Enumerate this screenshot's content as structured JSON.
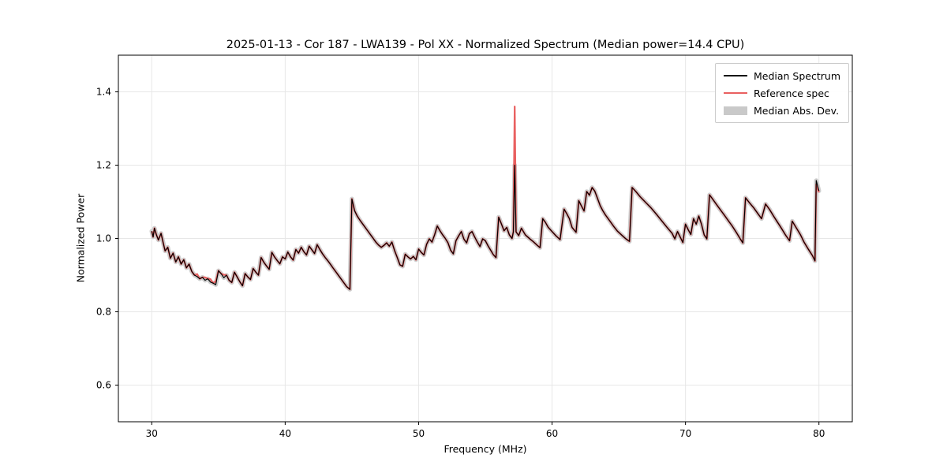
{
  "chart_data": {
    "type": "line",
    "title": "2025-01-13 - Cor 187 - LWA139 - Pol XX - Normalized Spectrum (Median power=14.4 CPU)",
    "xlabel": "Frequency (MHz)",
    "ylabel": "Normalized Power",
    "xlim": [
      27.5,
      82.5
    ],
    "ylim": [
      0.5,
      1.5
    ],
    "xticks": [
      30,
      40,
      50,
      60,
      70,
      80
    ],
    "xtick_labels": [
      "30",
      "40",
      "50",
      "60",
      "70",
      "80"
    ],
    "yticks": [
      0.6,
      0.8,
      1.0,
      1.2,
      1.4
    ],
    "ytick_labels": [
      "0.6",
      "0.8",
      "1.0",
      "1.2",
      "1.4"
    ],
    "grid": true,
    "legend": {
      "position": "upper-right",
      "entries": [
        "Median Spectrum",
        "Reference spec",
        "Median Abs. Dev."
      ]
    },
    "series": [
      {
        "name": "Median Spectrum",
        "color": "#000000",
        "line_width": 1.2,
        "draw_order": 3,
        "points": [
          [
            30.0,
            1.02
          ],
          [
            30.1,
            1.004
          ],
          [
            30.2,
            1.028
          ],
          [
            30.35,
            1.01
          ],
          [
            30.5,
            0.996
          ],
          [
            30.7,
            1.014
          ],
          [
            30.85,
            0.99
          ],
          [
            31.0,
            0.966
          ],
          [
            31.2,
            0.976
          ],
          [
            31.4,
            0.946
          ],
          [
            31.6,
            0.96
          ],
          [
            31.8,
            0.936
          ],
          [
            32.0,
            0.95
          ],
          [
            32.2,
            0.93
          ],
          [
            32.4,
            0.942
          ],
          [
            32.6,
            0.92
          ],
          [
            32.8,
            0.93
          ],
          [
            33.0,
            0.91
          ],
          [
            33.2,
            0.9
          ],
          [
            33.4,
            0.896
          ],
          [
            33.6,
            0.89
          ],
          [
            33.8,
            0.894
          ],
          [
            34.0,
            0.886
          ],
          [
            34.2,
            0.89
          ],
          [
            34.4,
            0.881
          ],
          [
            34.6,
            0.878
          ],
          [
            34.8,
            0.874
          ],
          [
            35.0,
            0.912
          ],
          [
            35.2,
            0.904
          ],
          [
            35.4,
            0.893
          ],
          [
            35.6,
            0.9
          ],
          [
            35.8,
            0.886
          ],
          [
            36.0,
            0.88
          ],
          [
            36.2,
            0.908
          ],
          [
            36.4,
            0.895
          ],
          [
            36.6,
            0.882
          ],
          [
            36.8,
            0.871
          ],
          [
            37.0,
            0.904
          ],
          [
            37.2,
            0.895
          ],
          [
            37.4,
            0.888
          ],
          [
            37.6,
            0.918
          ],
          [
            37.8,
            0.908
          ],
          [
            38.0,
            0.9
          ],
          [
            38.2,
            0.948
          ],
          [
            38.4,
            0.935
          ],
          [
            38.6,
            0.925
          ],
          [
            38.8,
            0.916
          ],
          [
            39.0,
            0.962
          ],
          [
            39.2,
            0.95
          ],
          [
            39.4,
            0.94
          ],
          [
            39.6,
            0.931
          ],
          [
            39.8,
            0.95
          ],
          [
            40.0,
            0.944
          ],
          [
            40.2,
            0.963
          ],
          [
            40.4,
            0.95
          ],
          [
            40.6,
            0.941
          ],
          [
            40.8,
            0.97
          ],
          [
            41.0,
            0.96
          ],
          [
            41.2,
            0.976
          ],
          [
            41.4,
            0.964
          ],
          [
            41.6,
            0.955
          ],
          [
            41.8,
            0.979
          ],
          [
            42.0,
            0.969
          ],
          [
            42.2,
            0.959
          ],
          [
            42.4,
            0.983
          ],
          [
            42.6,
            0.97
          ],
          [
            42.8,
            0.958
          ],
          [
            43.0,
            0.948
          ],
          [
            43.2,
            0.939
          ],
          [
            43.4,
            0.929
          ],
          [
            43.6,
            0.919
          ],
          [
            43.8,
            0.909
          ],
          [
            44.0,
            0.899
          ],
          [
            44.2,
            0.889
          ],
          [
            44.4,
            0.879
          ],
          [
            44.6,
            0.869
          ],
          [
            44.85,
            0.861
          ],
          [
            45.0,
            1.108
          ],
          [
            45.2,
            1.076
          ],
          [
            45.4,
            1.061
          ],
          [
            45.6,
            1.05
          ],
          [
            45.8,
            1.04
          ],
          [
            46.0,
            1.03
          ],
          [
            46.2,
            1.02
          ],
          [
            46.4,
            1.01
          ],
          [
            46.6,
            1.0
          ],
          [
            46.8,
            0.99
          ],
          [
            47.0,
            0.982
          ],
          [
            47.2,
            0.976
          ],
          [
            47.4,
            0.981
          ],
          [
            47.6,
            0.988
          ],
          [
            47.8,
            0.979
          ],
          [
            48.0,
            0.99
          ],
          [
            48.2,
            0.967
          ],
          [
            48.4,
            0.948
          ],
          [
            48.6,
            0.928
          ],
          [
            48.8,
            0.924
          ],
          [
            49.0,
            0.957
          ],
          [
            49.2,
            0.95
          ],
          [
            49.4,
            0.944
          ],
          [
            49.6,
            0.951
          ],
          [
            49.8,
            0.942
          ],
          [
            50.0,
            0.971
          ],
          [
            50.2,
            0.962
          ],
          [
            50.4,
            0.955
          ],
          [
            50.6,
            0.984
          ],
          [
            50.8,
            0.999
          ],
          [
            51.0,
            0.99
          ],
          [
            51.2,
            1.01
          ],
          [
            51.4,
            1.034
          ],
          [
            51.6,
            1.021
          ],
          [
            51.8,
            1.01
          ],
          [
            52.0,
            1.0
          ],
          [
            52.2,
            0.988
          ],
          [
            52.4,
            0.968
          ],
          [
            52.6,
            0.958
          ],
          [
            52.8,
            0.994
          ],
          [
            53.0,
            1.007
          ],
          [
            53.2,
            1.019
          ],
          [
            53.4,
            0.998
          ],
          [
            53.6,
            0.988
          ],
          [
            53.8,
            1.013
          ],
          [
            54.0,
            1.019
          ],
          [
            54.2,
            1.004
          ],
          [
            54.4,
            0.99
          ],
          [
            54.6,
            0.978
          ],
          [
            54.8,
            0.999
          ],
          [
            55.0,
            0.994
          ],
          [
            55.2,
            0.98
          ],
          [
            55.4,
            0.968
          ],
          [
            55.6,
            0.956
          ],
          [
            55.8,
            0.948
          ],
          [
            56.0,
            1.058
          ],
          [
            56.2,
            1.04
          ],
          [
            56.4,
            1.021
          ],
          [
            56.6,
            1.03
          ],
          [
            56.8,
            1.01
          ],
          [
            57.0,
            1.0
          ],
          [
            57.1,
            1.018
          ],
          [
            57.2,
            1.2
          ],
          [
            57.3,
            1.018
          ],
          [
            57.5,
            1.008
          ],
          [
            57.7,
            1.028
          ],
          [
            58.0,
            1.01
          ],
          [
            58.3,
            1.0
          ],
          [
            58.6,
            0.991
          ],
          [
            58.9,
            0.981
          ],
          [
            59.1,
            0.975
          ],
          [
            59.3,
            1.054
          ],
          [
            59.5,
            1.044
          ],
          [
            59.7,
            1.031
          ],
          [
            60.0,
            1.019
          ],
          [
            60.3,
            1.007
          ],
          [
            60.6,
            0.997
          ],
          [
            60.9,
            1.08
          ],
          [
            61.1,
            1.068
          ],
          [
            61.3,
            1.054
          ],
          [
            61.5,
            1.03
          ],
          [
            61.8,
            1.017
          ],
          [
            62.0,
            1.103
          ],
          [
            62.2,
            1.089
          ],
          [
            62.4,
            1.075
          ],
          [
            62.6,
            1.128
          ],
          [
            62.8,
            1.118
          ],
          [
            63.0,
            1.139
          ],
          [
            63.2,
            1.129
          ],
          [
            63.4,
            1.11
          ],
          [
            63.6,
            1.09
          ],
          [
            63.8,
            1.076
          ],
          [
            64.0,
            1.064
          ],
          [
            64.3,
            1.049
          ],
          [
            64.6,
            1.034
          ],
          [
            64.9,
            1.02
          ],
          [
            65.2,
            1.01
          ],
          [
            65.5,
            1.0
          ],
          [
            65.8,
            0.992
          ],
          [
            66.0,
            1.139
          ],
          [
            66.3,
            1.127
          ],
          [
            66.6,
            1.114
          ],
          [
            67.0,
            1.099
          ],
          [
            67.4,
            1.084
          ],
          [
            67.8,
            1.067
          ],
          [
            68.2,
            1.049
          ],
          [
            68.6,
            1.031
          ],
          [
            69.0,
            1.014
          ],
          [
            69.2,
            0.999
          ],
          [
            69.4,
            1.019
          ],
          [
            69.6,
            1.004
          ],
          [
            69.8,
            0.989
          ],
          [
            70.0,
            1.039
          ],
          [
            70.2,
            1.024
          ],
          [
            70.4,
            1.011
          ],
          [
            70.6,
            1.054
          ],
          [
            70.8,
            1.039
          ],
          [
            71.0,
            1.061
          ],
          [
            71.2,
            1.039
          ],
          [
            71.4,
            1.01
          ],
          [
            71.6,
            0.999
          ],
          [
            71.8,
            1.119
          ],
          [
            72.0,
            1.109
          ],
          [
            72.3,
            1.094
          ],
          [
            72.6,
            1.079
          ],
          [
            72.9,
            1.064
          ],
          [
            73.2,
            1.049
          ],
          [
            73.5,
            1.034
          ],
          [
            73.8,
            1.017
          ],
          [
            74.1,
            0.999
          ],
          [
            74.3,
            0.988
          ],
          [
            74.5,
            1.111
          ],
          [
            74.8,
            1.097
          ],
          [
            75.1,
            1.084
          ],
          [
            75.4,
            1.069
          ],
          [
            75.7,
            1.054
          ],
          [
            76.0,
            1.094
          ],
          [
            76.3,
            1.079
          ],
          [
            76.6,
            1.061
          ],
          [
            76.9,
            1.044
          ],
          [
            77.2,
            1.027
          ],
          [
            77.5,
            1.009
          ],
          [
            77.8,
            0.994
          ],
          [
            78.0,
            1.047
          ],
          [
            78.3,
            1.029
          ],
          [
            78.6,
            1.011
          ],
          [
            78.9,
            0.989
          ],
          [
            79.2,
            0.971
          ],
          [
            79.5,
            0.954
          ],
          [
            79.7,
            0.939
          ],
          [
            79.8,
            1.158
          ],
          [
            80.0,
            1.13
          ]
        ]
      },
      {
        "name": "Reference spec",
        "color": "#e96060",
        "line_width": 2.2,
        "draw_order": 2,
        "base_series": 0,
        "overrides": [
          [
            33.4,
            0.903
          ],
          [
            34.0,
            0.894
          ],
          [
            34.4,
            0.889
          ],
          [
            34.8,
            0.883
          ],
          [
            35.4,
            0.901
          ],
          [
            57.2,
            1.36
          ],
          [
            79.8,
            1.148
          ],
          [
            80.0,
            1.126
          ]
        ]
      },
      {
        "name": "Median Abs. Dev.",
        "color": "#c9c9c9",
        "type": "band",
        "half_width": 0.006,
        "draw_order": 1,
        "base_series": 0
      }
    ]
  }
}
